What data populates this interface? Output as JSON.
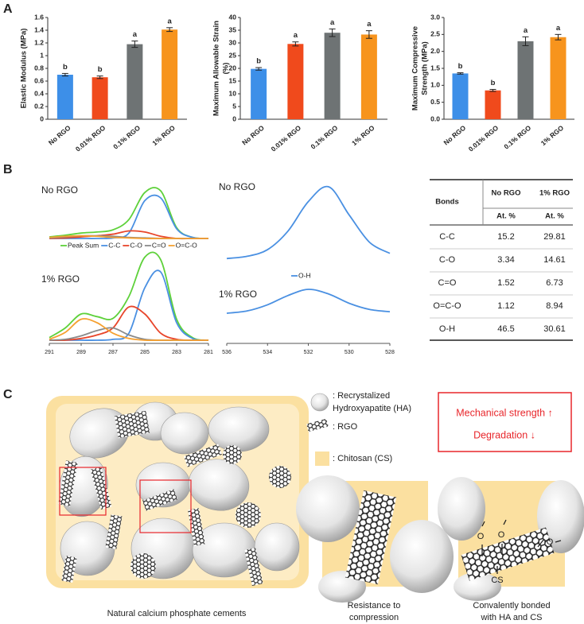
{
  "panel_labels": [
    "A",
    "B",
    "C"
  ],
  "chart_data": [
    {
      "type": "bar",
      "ylabel": [
        "Elastic Modulus (MPa)"
      ],
      "categories": [
        "No RGO",
        "0.01% RGO",
        "0.1% RGO",
        "1% RGO"
      ],
      "values": [
        0.7,
        0.66,
        1.18,
        1.41
      ],
      "errors": [
        0.02,
        0.02,
        0.05,
        0.03
      ],
      "annotations": [
        "b",
        "b",
        "a",
        "a"
      ],
      "colors": [
        "#3d8fe8",
        "#f04a1c",
        "#6e7374",
        "#f7941d"
      ],
      "ylim": [
        0,
        1.6
      ],
      "yticks": [
        0,
        0.2,
        0.4,
        0.6,
        0.8,
        1,
        1.2,
        1.4,
        1.6
      ]
    },
    {
      "type": "bar",
      "ylabel": [
        "Maximum Allowable Strain",
        "(%)"
      ],
      "categories": [
        "No RGO",
        "0.01% RGO",
        "0.1% RGO",
        "1% RGO"
      ],
      "values": [
        19.8,
        29.6,
        34.0,
        33.3
      ],
      "errors": [
        0.5,
        0.8,
        1.5,
        1.5
      ],
      "annotations": [
        "b",
        "a",
        "a",
        "a"
      ],
      "colors": [
        "#3d8fe8",
        "#f04a1c",
        "#6e7374",
        "#f7941d"
      ],
      "ylim": [
        0,
        40
      ],
      "yticks": [
        0,
        5,
        10,
        15,
        20,
        25,
        30,
        35,
        40
      ]
    },
    {
      "type": "bar",
      "ylabel": [
        "Maximum Compressive",
        "Strength (MPa)"
      ],
      "categories": [
        "No RGO",
        "0.01% RGO",
        "0.1% RGO",
        "1% RGO"
      ],
      "values": [
        1.35,
        0.85,
        2.3,
        2.42
      ],
      "errors": [
        0.02,
        0.03,
        0.13,
        0.08
      ],
      "annotations": [
        "b",
        "b",
        "a",
        "a"
      ],
      "colors": [
        "#3d8fe8",
        "#f04a1c",
        "#6e7374",
        "#f7941d"
      ],
      "ylim": [
        0,
        3.0
      ],
      "yticks": [
        {
          "value": 0,
          "label": "0.0"
        },
        {
          "value": 0.5,
          "label": "0.5"
        },
        {
          "value": 1,
          "label": "1.0"
        },
        {
          "value": 1.5,
          "label": "1.5"
        },
        {
          "value": 2,
          "label": "2.0"
        },
        {
          "value": 2.5,
          "label": "2.5"
        },
        {
          "value": 3,
          "label": "3.0"
        }
      ]
    },
    {
      "type": "line",
      "panel_labels": [
        "No RGO",
        "1% RGO"
      ],
      "x": [
        291,
        290,
        289,
        288,
        287,
        286,
        285,
        284,
        283,
        282,
        281
      ],
      "xlim": [
        291,
        281
      ],
      "xticks": [
        291,
        289,
        287,
        285,
        283,
        281
      ],
      "ylim": [
        0,
        100
      ],
      "series": [
        {
          "name": "Peak Sum",
          "color": "#5ed13a",
          "values": [
            [
              3,
              6,
              10,
              12,
              16,
              35,
              85,
              88,
              20,
              2,
              0
            ],
            [
              3,
              14,
              30,
              27,
              25,
              50,
              95,
              92,
              24,
              3,
              0
            ]
          ]
        },
        {
          "name": "C-C",
          "color": "#4a90e2",
          "values": [
            [
              0,
              0,
              0,
              0,
              1,
              10,
              70,
              75,
              18,
              2,
              0
            ],
            [
              0,
              0,
              0,
              0,
              1,
              8,
              60,
              78,
              20,
              2,
              0
            ]
          ]
        },
        {
          "name": "C-O",
          "color": "#e8452a",
          "values": [
            [
              0,
              1,
              3,
              5,
              8,
              14,
              12,
              4,
              0,
              0,
              0
            ],
            [
              0,
              0,
              2,
              6,
              14,
              38,
              30,
              8,
              1,
              0,
              0
            ]
          ]
        },
        {
          "name": "C=O",
          "color": "#8a8a8a",
          "values": [
            [
              1,
              3,
              5,
              5,
              4,
              2,
              1,
              0,
              0,
              0,
              0
            ],
            [
              0,
              1,
              5,
              11,
              14,
              6,
              1,
              0,
              0,
              0,
              0
            ]
          ]
        },
        {
          "name": "O=C-O",
          "color": "#f5a030",
          "values": [
            [
              2,
              4,
              5,
              4,
              2,
              1,
              0,
              0,
              0,
              0,
              0
            ],
            [
              1,
              9,
              24,
              20,
              8,
              2,
              0,
              0,
              0,
              0,
              0
            ]
          ]
        }
      ]
    },
    {
      "type": "line",
      "panel_labels": [
        "No RGO",
        "1% RGO"
      ],
      "x": [
        536,
        535,
        534,
        533,
        532,
        531,
        530,
        529,
        528
      ],
      "xlim": [
        536,
        528
      ],
      "xticks": [
        536,
        534,
        532,
        530,
        528
      ],
      "ylim": [
        0,
        100
      ],
      "series": [
        {
          "name": "O-H",
          "color": "#4a90e2",
          "values": [
            [
              3,
              6,
              15,
              40,
              80,
              100,
              62,
              25,
              10
            ],
            [
              3,
              6,
              14,
              26,
              34,
              28,
              16,
              8,
              5
            ]
          ]
        }
      ]
    }
  ],
  "table": {
    "header": [
      "Bonds",
      "No RGO",
      "1% RGO"
    ],
    "subheader": [
      "At. %",
      "At. %"
    ],
    "rows": [
      [
        "C-C",
        15.2,
        29.81
      ],
      [
        "C-O",
        3.34,
        14.61
      ],
      [
        "C=O",
        1.52,
        6.73
      ],
      [
        "O=C-O",
        1.12,
        8.94
      ],
      [
        "O-H",
        46.5,
        30.61
      ]
    ]
  },
  "diagram": {
    "legend": [
      ": Recrystalized",
      "Hydroxyapatite (HA)",
      ": RGO",
      ": Chitosan (CS)"
    ],
    "effects": [
      "Mechanical strength ↑",
      "Degradation ↓"
    ],
    "caption": "Natural calcium phosphate cements",
    "insets": [
      {
        "caption": [
          "Resistance to",
          "compression"
        ]
      },
      {
        "caption": [
          "Convalently bonded",
          "with HA and CS"
        ],
        "labels": [
          "O",
          "O",
          "O",
          "CS"
        ]
      }
    ]
  }
}
